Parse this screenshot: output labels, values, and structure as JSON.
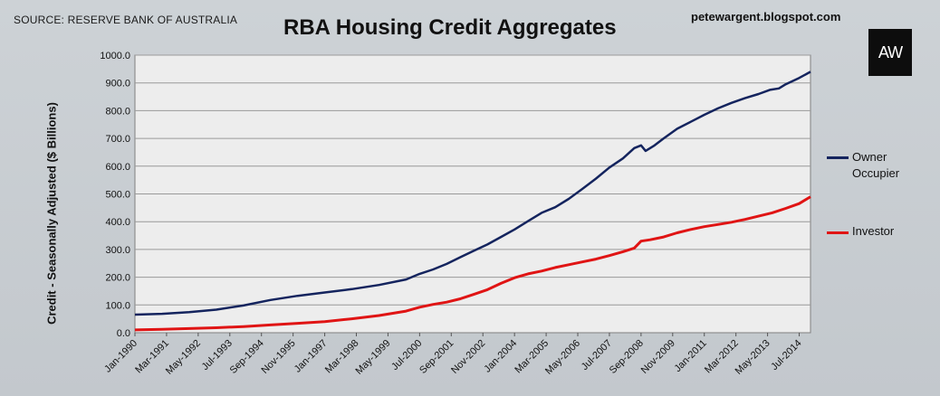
{
  "header": {
    "source": "SOURCE: RESERVE BANK OF AUSTRALIA",
    "blog": "petewargent.blogspot.com",
    "logo_text": "AW"
  },
  "colors": {
    "owner_occupier": "#14245e",
    "investor": "#e01414",
    "plot_area": "#ededed",
    "gridline": "#9a9a9a"
  },
  "chart_data": {
    "type": "line",
    "title": "RBA Housing Credit Aggregates",
    "xlabel": "",
    "ylabel": "Credit - Seasonally Adjusted ($ Billions)",
    "ylim": [
      0,
      1000
    ],
    "ytick_step": 100,
    "yticks": [
      "0.0",
      "100.0",
      "200.0",
      "300.0",
      "400.0",
      "500.0",
      "600.0",
      "700.0",
      "800.0",
      "900.0",
      "1000.0"
    ],
    "grid": true,
    "legend_position": "right",
    "x_range": [
      "1990-01",
      "2014-12"
    ],
    "xticks": [
      "Jan-1990",
      "Mar-1991",
      "May-1992",
      "Jul-1993",
      "Sep-1994",
      "Nov-1995",
      "Jan-1997",
      "Mar-1998",
      "May-1999",
      "Jul-2000",
      "Sep-2001",
      "Nov-2002",
      "Jan-2004",
      "Mar-2005",
      "May-2006",
      "Jul-2007",
      "Sep-2008",
      "Nov-2009",
      "Jan-2011",
      "Mar-2012",
      "May-2013",
      "Jul-2014"
    ],
    "series": [
      {
        "name": "Owner\nOccupier",
        "color": "#14245e",
        "points": [
          [
            "1990-01",
            65
          ],
          [
            "1991-01",
            68
          ],
          [
            "1992-01",
            74
          ],
          [
            "1993-01",
            83
          ],
          [
            "1994-01",
            98
          ],
          [
            "1995-01",
            118
          ],
          [
            "1996-01",
            133
          ],
          [
            "1997-01",
            145
          ],
          [
            "1998-01",
            157
          ],
          [
            "1999-01",
            172
          ],
          [
            "2000-01",
            192
          ],
          [
            "2000-07",
            212
          ],
          [
            "2001-01",
            228
          ],
          [
            "2001-07",
            248
          ],
          [
            "2002-01",
            272
          ],
          [
            "2002-07",
            295
          ],
          [
            "2003-01",
            318
          ],
          [
            "2003-07",
            345
          ],
          [
            "2004-01",
            372
          ],
          [
            "2004-07",
            402
          ],
          [
            "2005-01",
            432
          ],
          [
            "2005-07",
            452
          ],
          [
            "2006-01",
            482
          ],
          [
            "2006-07",
            518
          ],
          [
            "2007-01",
            555
          ],
          [
            "2007-07",
            595
          ],
          [
            "2008-01",
            628
          ],
          [
            "2008-06",
            665
          ],
          [
            "2008-09",
            675
          ],
          [
            "2008-11",
            655
          ],
          [
            "2009-03",
            675
          ],
          [
            "2009-07",
            700
          ],
          [
            "2010-01",
            735
          ],
          [
            "2010-07",
            760
          ],
          [
            "2011-01",
            785
          ],
          [
            "2011-07",
            808
          ],
          [
            "2012-01",
            828
          ],
          [
            "2012-07",
            845
          ],
          [
            "2013-01",
            860
          ],
          [
            "2013-06",
            875
          ],
          [
            "2013-10",
            880
          ],
          [
            "2014-01",
            895
          ],
          [
            "2014-07",
            918
          ],
          [
            "2014-12",
            940
          ]
        ]
      },
      {
        "name": "Investor",
        "color": "#e01414",
        "points": [
          [
            "1990-01",
            10
          ],
          [
            "1991-01",
            12
          ],
          [
            "1992-01",
            15
          ],
          [
            "1993-01",
            18
          ],
          [
            "1994-01",
            22
          ],
          [
            "1995-01",
            28
          ],
          [
            "1996-01",
            34
          ],
          [
            "1997-01",
            40
          ],
          [
            "1998-01",
            50
          ],
          [
            "1999-01",
            62
          ],
          [
            "2000-01",
            78
          ],
          [
            "2000-07",
            92
          ],
          [
            "2001-01",
            102
          ],
          [
            "2001-07",
            110
          ],
          [
            "2002-01",
            122
          ],
          [
            "2002-07",
            138
          ],
          [
            "2003-01",
            155
          ],
          [
            "2003-07",
            178
          ],
          [
            "2004-01",
            198
          ],
          [
            "2004-07",
            212
          ],
          [
            "2005-01",
            222
          ],
          [
            "2005-07",
            235
          ],
          [
            "2006-01",
            245
          ],
          [
            "2006-07",
            255
          ],
          [
            "2007-01",
            265
          ],
          [
            "2007-07",
            278
          ],
          [
            "2008-01",
            292
          ],
          [
            "2008-06",
            305
          ],
          [
            "2008-09",
            330
          ],
          [
            "2009-01",
            335
          ],
          [
            "2009-07",
            345
          ],
          [
            "2010-01",
            360
          ],
          [
            "2010-07",
            372
          ],
          [
            "2011-01",
            382
          ],
          [
            "2011-07",
            390
          ],
          [
            "2012-01",
            398
          ],
          [
            "2012-07",
            408
          ],
          [
            "2013-01",
            420
          ],
          [
            "2013-07",
            432
          ],
          [
            "2014-01",
            448
          ],
          [
            "2014-07",
            465
          ],
          [
            "2014-12",
            490
          ]
        ]
      }
    ]
  }
}
